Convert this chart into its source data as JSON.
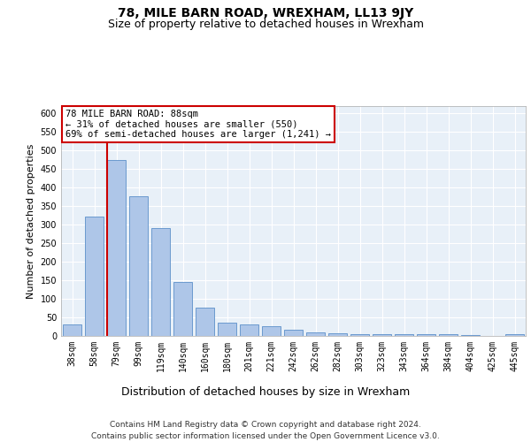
{
  "title": "78, MILE BARN ROAD, WREXHAM, LL13 9JY",
  "subtitle": "Size of property relative to detached houses in Wrexham",
  "xlabel": "Distribution of detached houses by size in Wrexham",
  "ylabel": "Number of detached properties",
  "categories": [
    "38sqm",
    "58sqm",
    "79sqm",
    "99sqm",
    "119sqm",
    "140sqm",
    "160sqm",
    "180sqm",
    "201sqm",
    "221sqm",
    "242sqm",
    "262sqm",
    "282sqm",
    "303sqm",
    "323sqm",
    "343sqm",
    "364sqm",
    "384sqm",
    "404sqm",
    "425sqm",
    "445sqm"
  ],
  "values": [
    32,
    322,
    474,
    376,
    290,
    145,
    77,
    35,
    30,
    27,
    16,
    9,
    6,
    5,
    5,
    5,
    5,
    5,
    2,
    1,
    5
  ],
  "bar_color": "#aec6e8",
  "bar_edge_color": "#5b8fc9",
  "vline_x_index": 2,
  "vline_color": "#cc0000",
  "annotation_text": "78 MILE BARN ROAD: 88sqm\n← 31% of detached houses are smaller (550)\n69% of semi-detached houses are larger (1,241) →",
  "annotation_box_color": "#ffffff",
  "annotation_box_edge_color": "#cc0000",
  "ylim": [
    0,
    620
  ],
  "yticks": [
    0,
    50,
    100,
    150,
    200,
    250,
    300,
    350,
    400,
    450,
    500,
    550,
    600
  ],
  "footer_line1": "Contains HM Land Registry data © Crown copyright and database right 2024.",
  "footer_line2": "Contains public sector information licensed under the Open Government Licence v3.0.",
  "background_color": "#e8f0f8",
  "plot_bg_color": "#e8f0f8",
  "title_fontsize": 10,
  "subtitle_fontsize": 9,
  "xlabel_fontsize": 9,
  "ylabel_fontsize": 8,
  "tick_fontsize": 7,
  "annotation_fontsize": 7.5,
  "footer_fontsize": 6.5
}
